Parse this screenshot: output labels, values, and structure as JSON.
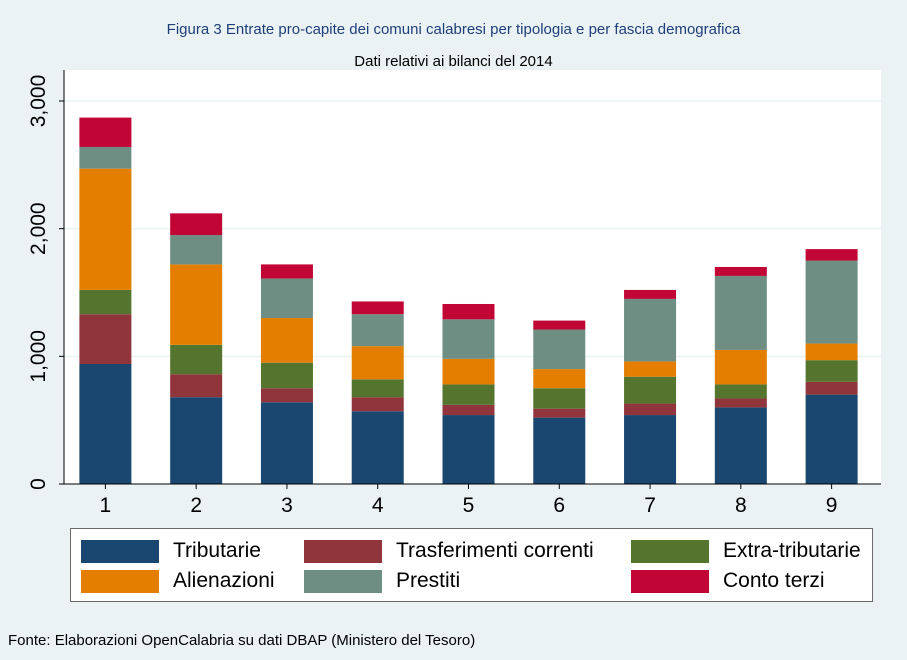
{
  "chart_data": {
    "type": "bar",
    "stacked": true,
    "title": "Figura 3 Entrate pro-capite dei comuni calabresi per tipologia e per fascia demografica",
    "subtitle": "Dati relativi ai bilanci del 2014",
    "xlabel": "",
    "ylabel": "",
    "ylim": [
      0,
      3000
    ],
    "yticks": [
      0,
      1000,
      2000,
      3000
    ],
    "ytick_labels": [
      "0",
      "1,000",
      "2,000",
      "3,000"
    ],
    "categories": [
      "1",
      "2",
      "3",
      "4",
      "5",
      "6",
      "7",
      "8",
      "9"
    ],
    "grid": true,
    "legend_position": "bottom",
    "series": [
      {
        "name": "Tributarie",
        "color": "#1a476f",
        "values": [
          940,
          680,
          640,
          570,
          540,
          520,
          540,
          600,
          700
        ]
      },
      {
        "name": "Trasferimenti correnti",
        "color": "#90353b",
        "values": [
          390,
          180,
          110,
          110,
          80,
          70,
          90,
          70,
          100
        ]
      },
      {
        "name": "Extra-tributarie",
        "color": "#55752f",
        "values": [
          190,
          230,
          200,
          140,
          160,
          160,
          210,
          110,
          170
        ]
      },
      {
        "name": "Alienazioni",
        "color": "#e37e00",
        "values": [
          950,
          630,
          350,
          260,
          200,
          150,
          120,
          270,
          130
        ]
      },
      {
        "name": "Prestiti",
        "color": "#6e8e84",
        "values": [
          170,
          230,
          310,
          250,
          310,
          310,
          490,
          580,
          650
        ]
      },
      {
        "name": "Conto terzi",
        "color": "#c10534",
        "values": [
          230,
          170,
          110,
          100,
          120,
          70,
          70,
          70,
          90
        ]
      }
    ]
  },
  "source": "Fonte: Elaborazioni OpenCalabria su dati DBAP (Ministero del Tesoro)"
}
